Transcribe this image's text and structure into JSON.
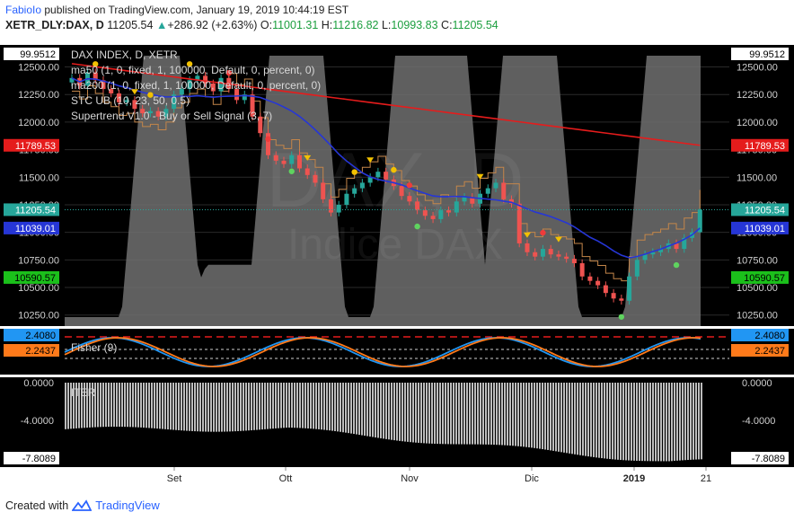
{
  "header": {
    "author": "FabioIo",
    "published": "published on TradingView.com, January 19, 2019 10:44:19 EST",
    "symbol": "XETR_DLY:DAX, D",
    "last": "11205.54",
    "change": "+286.92 (+2.63%)",
    "o_label": "O:",
    "o": "11001.31",
    "h_label": "H:",
    "h": "11216.82",
    "l_label": "L:",
    "l": "10993.83",
    "c_label": "C:",
    "c": "11205.54"
  },
  "legend": {
    "title": "DAX INDEX, D, XETR",
    "ma50": "ma50 (1, 0, fixed, 1, 100000, Default, 0, percent, 0)",
    "ma200": "ma200 (1, 0, fixed, 1, 100000, Default, 0, percent, 0)",
    "stc": "STC UB (10, 23, 50, 0.5)",
    "supertrend": "Supertrend V1.0 - Buy or Sell Signal (3, 7)",
    "fisher": "Fisher (9)",
    "iter": "ITER"
  },
  "watermark": {
    "ticker": "DAX, D",
    "name": "Indice DAX"
  },
  "colors": {
    "up": "#26a69a",
    "down": "#ef5350",
    "ma50": "#2636d6",
    "ma200": "#e51c1c",
    "fisher_blue": "#2196f3",
    "fisher_orange": "#ff7a1a",
    "stc_fill": "#707070",
    "supertrend": "#c4864a",
    "bg": "#000000",
    "grid": "#2a2a2a"
  },
  "price_axis": {
    "ticks": [
      "12500.00",
      "12250.00",
      "12000.00",
      "11750.00",
      "11500.00",
      "11250.00",
      "11000.00",
      "10750.00",
      "10500.00",
      "10250.00"
    ],
    "badges": [
      {
        "text": "99.9512",
        "bg": "#ffffff",
        "fg": "#000000",
        "value": 99.9512
      },
      {
        "text": "11789.53",
        "bg": "#e51c1c",
        "fg": "#ffffff",
        "value": 11789.53
      },
      {
        "text": "11205.54",
        "bg": "#26a69a",
        "fg": "#ffffff",
        "value": 11205.54
      },
      {
        "text": "11039.01",
        "bg": "#2636d6",
        "fg": "#ffffff",
        "value": 11039.01
      },
      {
        "text": "10590.57",
        "bg": "#1bc01b",
        "fg": "#000000",
        "value": 10590.57
      }
    ]
  },
  "fisher_axis": {
    "badges": [
      {
        "text": "2.4080",
        "bg": "#2196f3",
        "fg": "#000000"
      },
      {
        "text": "2.2437",
        "bg": "#ff7a1a",
        "fg": "#000000"
      }
    ]
  },
  "iter_axis": {
    "ticks": [
      "0.0000",
      "-4.0000"
    ],
    "badge": "-7.8089"
  },
  "time_axis": {
    "labels": [
      "Set",
      "Ott",
      "Nov",
      "Dic",
      "2019",
      "21"
    ]
  },
  "footer": {
    "created_with": "Created with",
    "brand": "TradingView"
  },
  "chart_data": {
    "type": "candlestick",
    "title": "DAX INDEX, D, XETR",
    "ylim": [
      10150,
      12700
    ],
    "y_ticks": [
      12500,
      12250,
      12000,
      11750,
      11500,
      11250,
      11000,
      10750,
      10500,
      10250
    ],
    "x_labels": [
      "Set",
      "Ott",
      "Nov",
      "Dic",
      "2019",
      "21"
    ],
    "close_series": [
      12400,
      12330,
      12450,
      12380,
      12300,
      12260,
      12180,
      12200,
      12120,
      12080,
      12100,
      12050,
      12120,
      12250,
      12300,
      12380,
      12420,
      12350,
      12280,
      12400,
      12300,
      12200,
      12250,
      12050,
      11900,
      11700,
      11650,
      11620,
      11700,
      11580,
      11520,
      11450,
      11300,
      11180,
      11250,
      11350,
      11400,
      11450,
      11500,
      11550,
      11480,
      11420,
      11330,
      11280,
      11200,
      11150,
      11120,
      11200,
      11180,
      11280,
      11320,
      11260,
      11350,
      11400,
      11450,
      11300,
      11260,
      10900,
      10820,
      10780,
      10850,
      10800,
      10780,
      10760,
      10720,
      10600,
      10560,
      10520,
      10450,
      10400,
      10380,
      10600,
      10750,
      10800,
      10820,
      10850,
      10900,
      10850,
      10950,
      11000,
      11205.54
    ],
    "ma50_end": 11039.01,
    "ma200_end": 11789.53,
    "last_close": 11205.54,
    "last_open": 11001.31,
    "last_high": 11216.82,
    "last_low": 10993.83,
    "fisher_last": [
      2.408,
      2.2437
    ],
    "iter_range": [
      0,
      -7.8089
    ]
  }
}
